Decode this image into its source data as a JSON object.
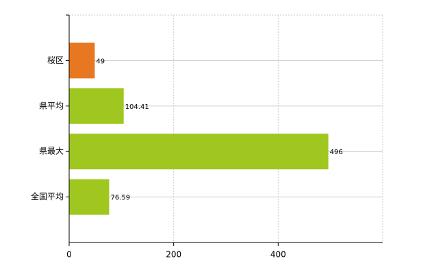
{
  "chart_data": {
    "type": "hbar",
    "categories": [
      "桜区",
      "県平均",
      "県最大",
      "全国平均"
    ],
    "values": [
      49,
      104.41,
      496,
      76.59
    ],
    "colors": [
      "#e87722",
      "#9fc71f",
      "#9fc71f",
      "#9fc71f"
    ],
    "xlim": [
      0,
      600
    ],
    "xticks": [
      0,
      200,
      400
    ],
    "grid": true
  }
}
